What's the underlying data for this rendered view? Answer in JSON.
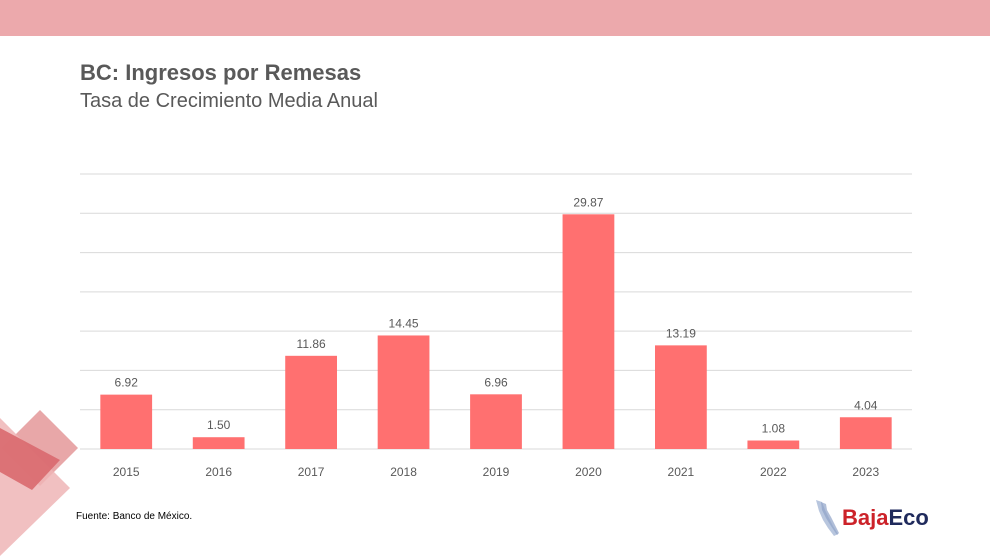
{
  "colors": {
    "top_band": "#ECA9AC",
    "bar": "#FF7070",
    "grid": "#D9D9D9",
    "text": "#595959",
    "deco_light": "#E8A7A8",
    "deco_dark": "#D9696E",
    "logo_red": "#CC2229",
    "logo_navy": "#1F2A5C",
    "logo_map": "#B8C6DE"
  },
  "chart_data": {
    "type": "bar",
    "title": "BC: Ingresos por Remesas",
    "subtitle": "Tasa de Crecimiento Media Anual",
    "categories": [
      "2015",
      "2016",
      "2017",
      "2018",
      "2019",
      "2020",
      "2021",
      "2022",
      "2023"
    ],
    "values": [
      6.92,
      1.5,
      11.86,
      14.45,
      6.96,
      29.87,
      13.19,
      1.08,
      4.04
    ],
    "data_labels": [
      "6.92",
      "1.50",
      "11.86",
      "14.45",
      "6.96",
      "29.87",
      "13.19",
      "1.08",
      "4.04"
    ],
    "xlabel": "",
    "ylabel": "",
    "ylim": [
      0,
      35
    ],
    "ytick_step": 5,
    "grid": true,
    "legend": "none"
  },
  "footer": {
    "source": "Fuente: Banco de México."
  },
  "logo": {
    "part1": "Baja",
    "part2": "Eco",
    "icon": "baja-california-map-icon"
  }
}
